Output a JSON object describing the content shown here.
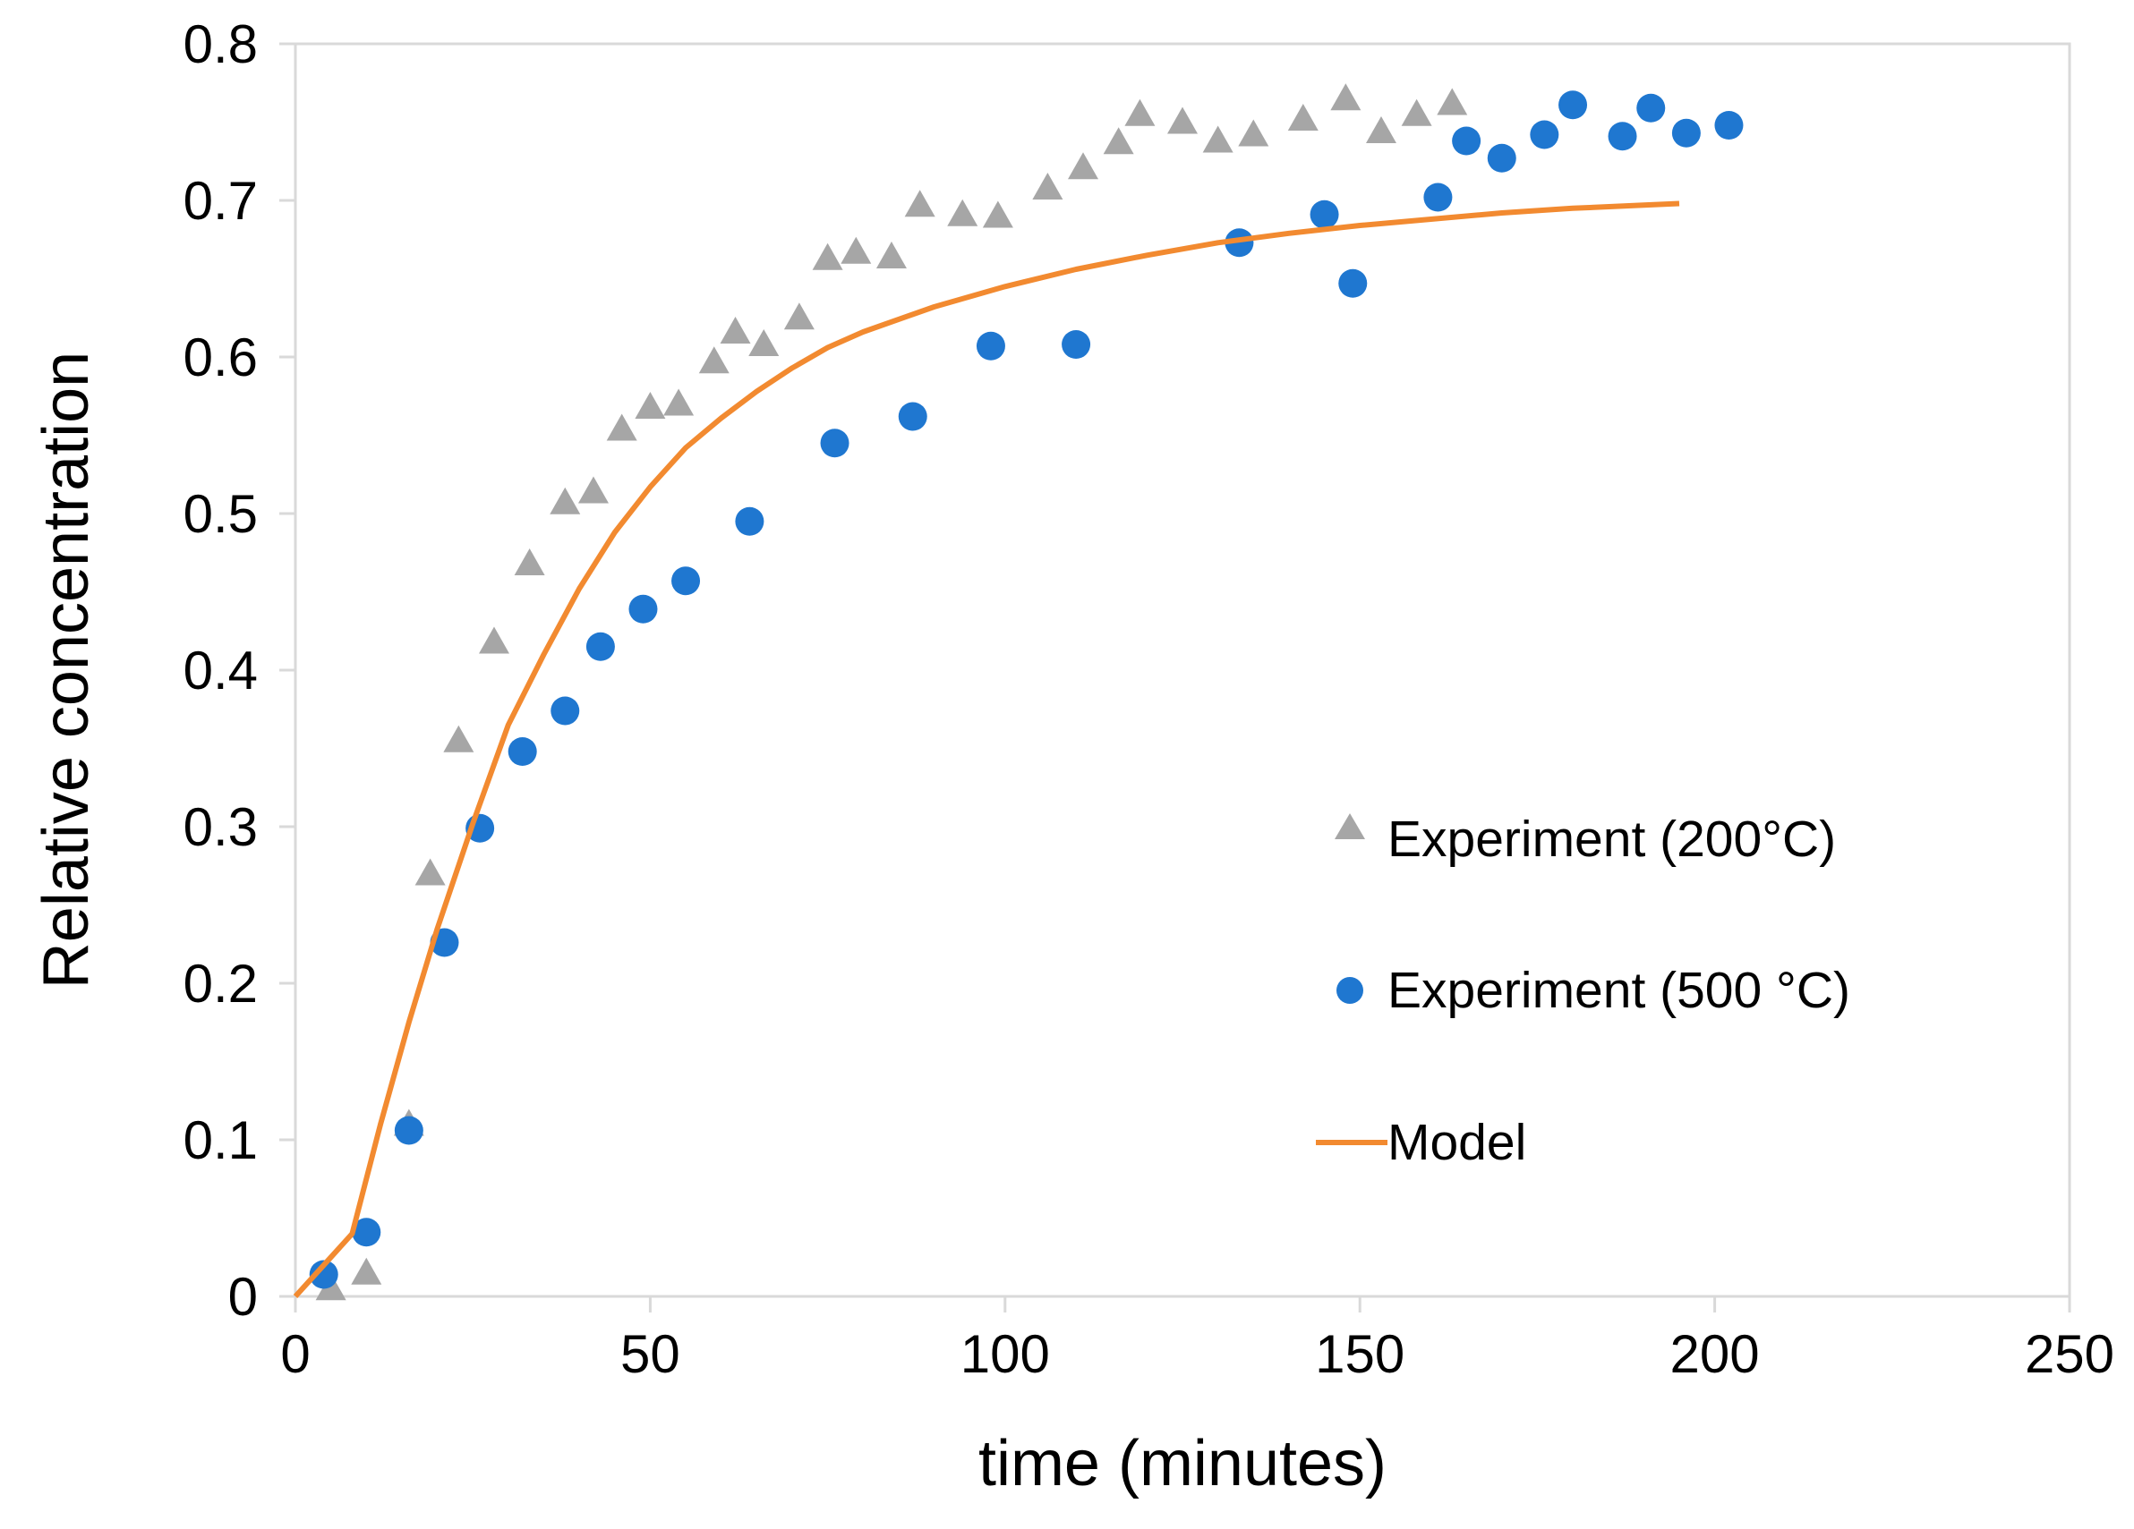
{
  "chart_data": {
    "type": "scatter",
    "xlabel": "time (minutes)",
    "ylabel": "Relative concentration",
    "xlim": [
      0,
      250
    ],
    "ylim": [
      0,
      0.8
    ],
    "xticks": [
      "0",
      "50",
      "100",
      "150",
      "200",
      "250"
    ],
    "yticks": [
      "0",
      "0.1",
      "0.2",
      "0.3",
      "0.4",
      "0.5",
      "0.6",
      "0.7",
      "0.8"
    ],
    "grid": false,
    "legend_position": "right",
    "series": [
      {
        "name": "Experiment (200°C)",
        "kind": "scatter",
        "marker": "triangle",
        "color": "#a6a6a6",
        "x": [
          5,
          10,
          16,
          19,
          23,
          28,
          33,
          38,
          42,
          46,
          50,
          54,
          59,
          62,
          66,
          71,
          75,
          79,
          84,
          88,
          94,
          99,
          106,
          111,
          116,
          119,
          125,
          130,
          135,
          142,
          148,
          153,
          158,
          163
        ],
        "y": [
          0.005,
          0.015,
          0.11,
          0.27,
          0.355,
          0.418,
          0.468,
          0.507,
          0.514,
          0.554,
          0.568,
          0.57,
          0.597,
          0.616,
          0.608,
          0.625,
          0.663,
          0.667,
          0.664,
          0.697,
          0.691,
          0.69,
          0.708,
          0.721,
          0.737,
          0.755,
          0.75,
          0.738,
          0.742,
          0.752,
          0.765,
          0.744,
          0.755,
          0.762
        ]
      },
      {
        "name": "Experiment (500 °C)",
        "kind": "scatter",
        "marker": "circle",
        "color": "#1f77d0",
        "x": [
          4,
          10,
          16,
          21,
          26,
          32,
          38,
          43,
          49,
          55,
          64,
          76,
          87,
          98,
          110,
          133,
          145,
          149,
          161,
          165,
          170,
          176,
          180,
          187,
          191,
          196,
          202
        ],
        "y": [
          0.014,
          0.041,
          0.106,
          0.226,
          0.299,
          0.348,
          0.374,
          0.415,
          0.439,
          0.457,
          0.495,
          0.545,
          0.562,
          0.607,
          0.608,
          0.673,
          0.691,
          0.647,
          0.702,
          0.738,
          0.727,
          0.742,
          0.761,
          0.741,
          0.759,
          0.743,
          0.748
        ]
      },
      {
        "name": "Model",
        "kind": "line",
        "color": "#f28a30",
        "x": [
          0,
          5,
          8,
          12,
          16,
          20,
          25,
          30,
          35,
          40,
          45,
          50,
          55,
          60,
          65,
          70,
          75,
          80,
          90,
          100,
          110,
          120,
          130,
          140,
          150,
          160,
          170,
          180,
          190,
          195
        ],
        "y": [
          0.0,
          0.025,
          0.04,
          0.11,
          0.175,
          0.235,
          0.302,
          0.365,
          0.41,
          0.452,
          0.488,
          0.517,
          0.542,
          0.561,
          0.578,
          0.593,
          0.606,
          0.616,
          0.632,
          0.645,
          0.656,
          0.665,
          0.673,
          0.679,
          0.684,
          0.688,
          0.692,
          0.695,
          0.697,
          0.698
        ]
      }
    ]
  }
}
